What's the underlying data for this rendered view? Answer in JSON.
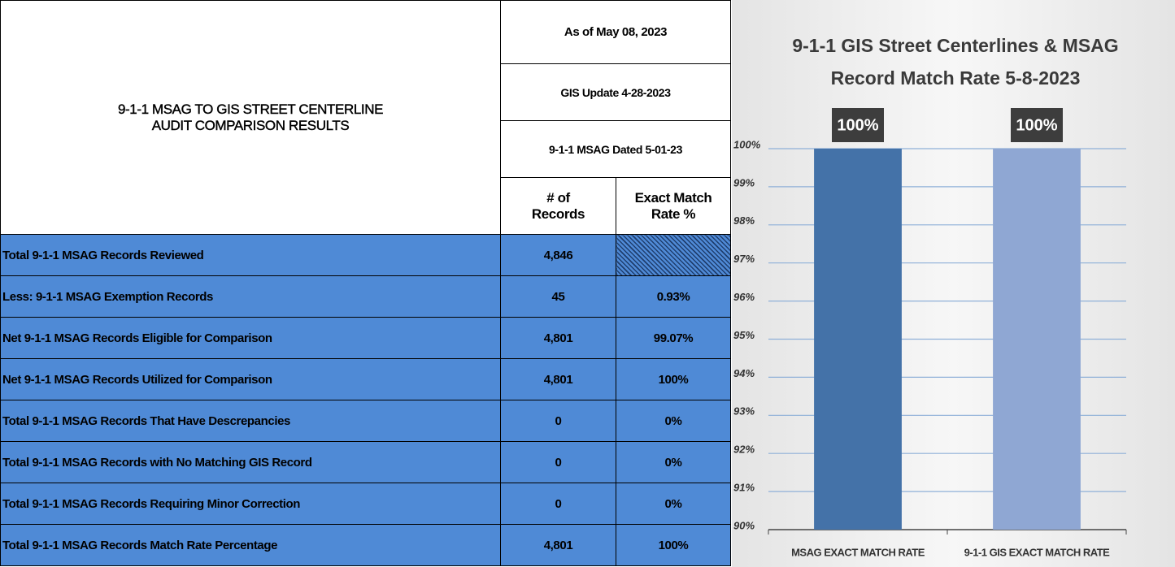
{
  "table": {
    "title": "9-1-1 MSAG TO GIS STREET CENTERLINE AUDIT COMPARISON RESULTS",
    "as_of": "As of May 08, 2023",
    "gis_update": "GIS Update 4-28-2023",
    "msag_dated": "9-1-1 MSAG Dated 5-01-23",
    "columns": [
      "# of Records",
      "Exact Match Rate %"
    ],
    "rows": [
      [
        "Total 9-1-1 MSAG Records Reviewed",
        "4,846",
        null
      ],
      [
        "Less:  9-1-1 MSAG Exemption Records",
        "45",
        "0.93%"
      ],
      [
        "Net 9-1-1 MSAG Records Eligible for Comparison",
        "4,801",
        "99.07%"
      ],
      [
        "Net 9-1-1 MSAG Records Utilized for Comparison",
        "4,801",
        "100%"
      ],
      [
        "Total 9-1-1 MSAG Records That Have Descrepancies",
        "0",
        "0%"
      ],
      [
        "Total 9-1-1 MSAG Records with No Matching GIS Record",
        "0",
        "0%"
      ],
      [
        "Total 9-1-1 MSAG Records Requiring Minor Correction",
        "0",
        "0%"
      ],
      [
        "Total 9-1-1 MSAG Records Match Rate Percentage",
        "4,801",
        "100%"
      ]
    ]
  },
  "chart_data": {
    "type": "bar",
    "title": "9-1-1 GIS Street Centerlines & MSAG Record Match Rate 5-8-2023",
    "categories": [
      "MSAG EXACT MATCH RATE",
      "9-1-1 GIS EXACT MATCH RATE"
    ],
    "values": [
      100,
      100
    ],
    "value_labels": [
      "100%",
      "100%"
    ],
    "colors": [
      "#4472a8",
      "#8fa7d3"
    ],
    "ylim": [
      90,
      100
    ],
    "yticks": [
      {
        "value": 90,
        "label": "90%"
      },
      {
        "value": 91,
        "label": "91%"
      },
      {
        "value": 92,
        "label": "92%"
      },
      {
        "value": 93,
        "label": "93%"
      },
      {
        "value": 94,
        "label": "94%"
      },
      {
        "value": 95,
        "label": "95%"
      },
      {
        "value": 96,
        "label": "96%"
      },
      {
        "value": 97,
        "label": "97%"
      },
      {
        "value": 98,
        "label": "98%"
      },
      {
        "value": 99,
        "label": "99%"
      },
      {
        "value": 100,
        "label": "100%"
      }
    ],
    "grid": true
  }
}
